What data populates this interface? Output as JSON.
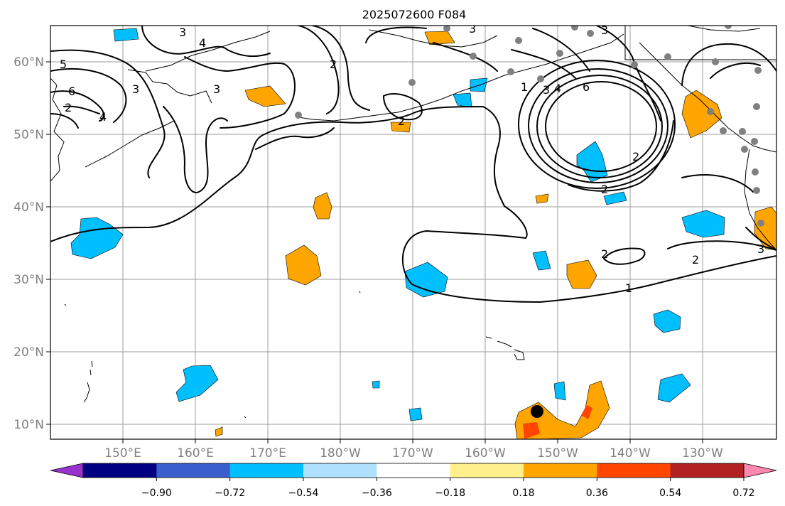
{
  "map": {
    "title": "2025072600 F084",
    "lat_labels": [
      "60°N",
      "50°N",
      "40°N",
      "30°N",
      "20°N",
      "10°N"
    ],
    "lon_labels": [
      "150°E",
      "160°E",
      "170°E",
      "180°W",
      "170°W",
      "160°W",
      "150°W",
      "140°W",
      "130°W"
    ],
    "contour_labels": [
      "3",
      "4",
      "5",
      "6",
      "2",
      "3",
      "4",
      "3",
      "2",
      "2",
      "1",
      "3",
      "4",
      "6",
      "3",
      "2",
      "2",
      "2",
      "2",
      "1",
      "3",
      "2",
      "3"
    ],
    "anomaly_colors": {
      "positive": "#ffa500",
      "strong_positive": "#ff4500",
      "negative": "#00bfff"
    },
    "station_color": "#808080",
    "marker_color": "#000000"
  },
  "colorbar": {
    "colors": [
      "#9932cc",
      "#000080",
      "#3a5fcd",
      "#00bfff",
      "#b0e2ff",
      "#ffffff",
      "#fff08c",
      "#ffa500",
      "#ff4500",
      "#b22222",
      "#ff88b0"
    ],
    "tick_labels": [
      "−0.90",
      "−0.72",
      "−0.54",
      "−0.36",
      "−0.18",
      "0.18",
      "0.36",
      "0.54",
      "0.72",
      "0.90"
    ]
  }
}
